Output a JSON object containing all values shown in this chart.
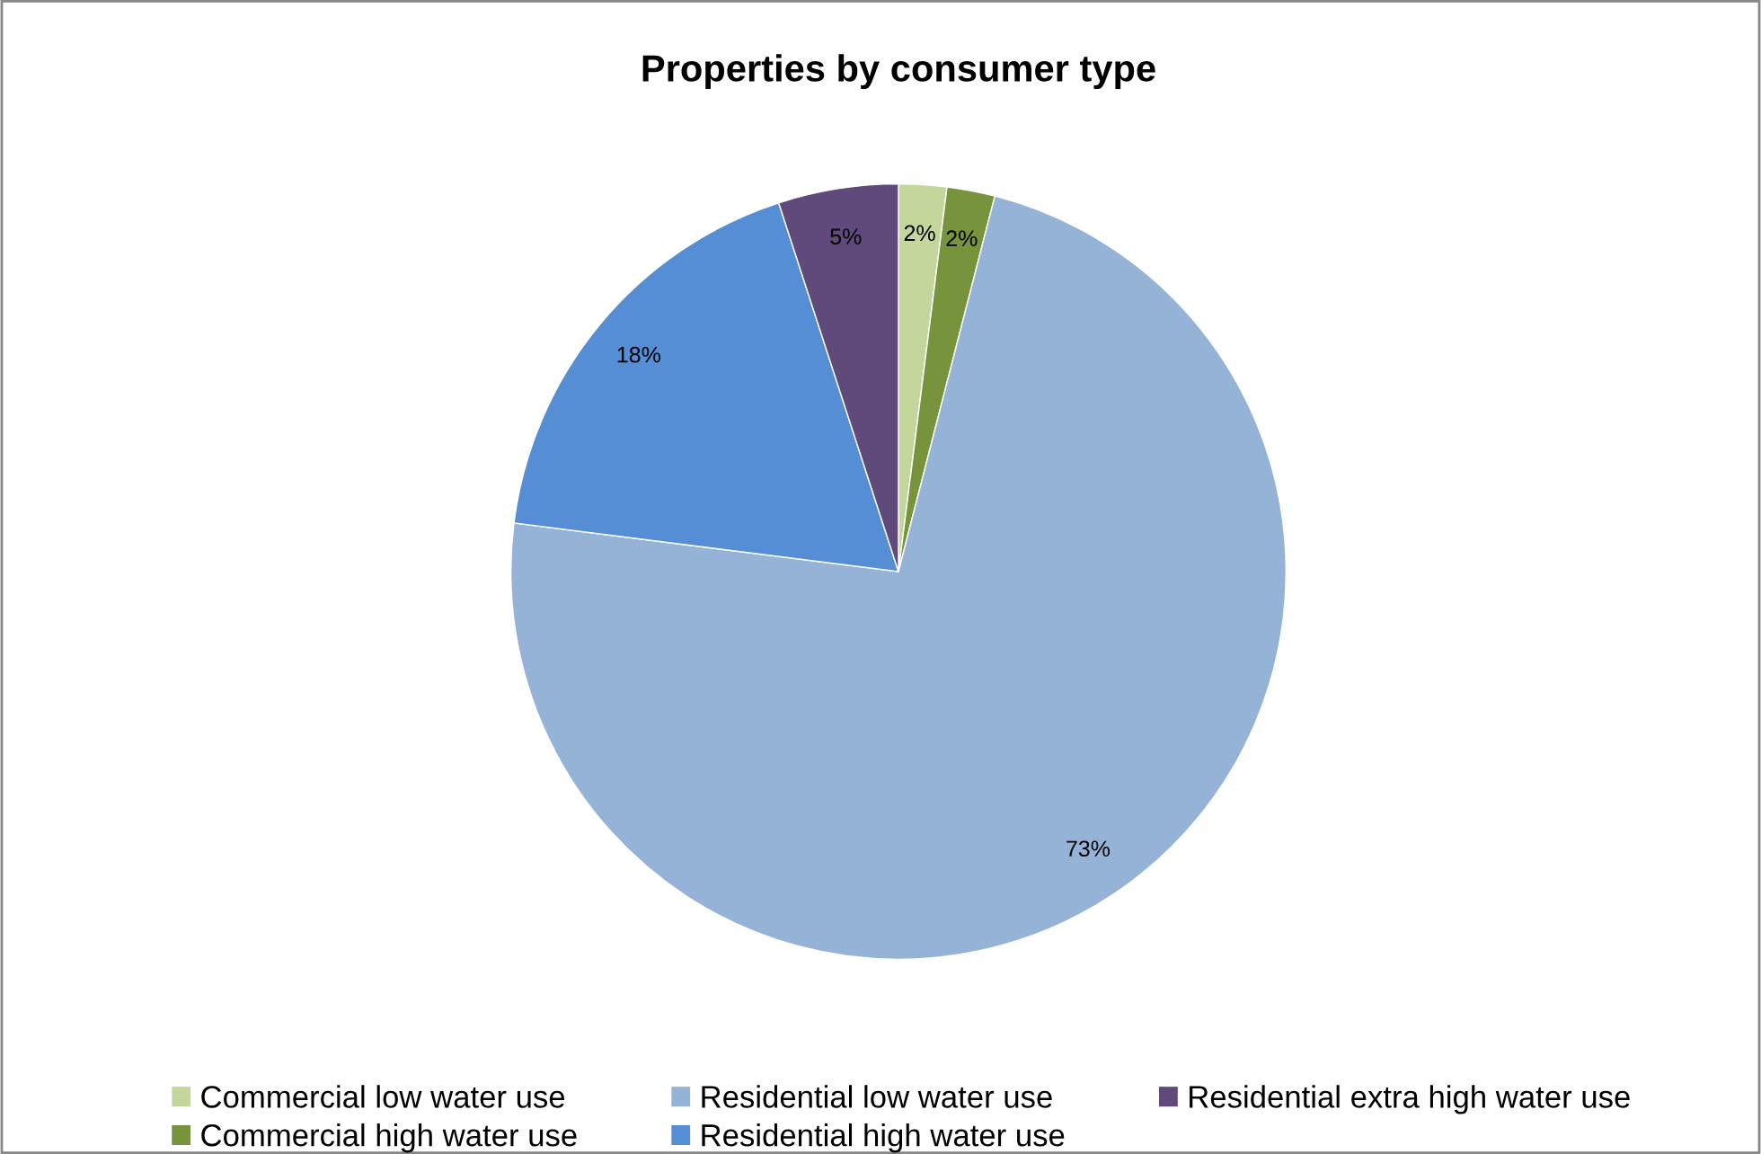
{
  "chart_data": {
    "type": "pie",
    "title": "Properties by consumer type",
    "categories": [
      "Commercial low water use",
      "Commercial high water use",
      "Residential low water use",
      "Residential high water use",
      "Residential extra high water use"
    ],
    "values": [
      2,
      2,
      73,
      18,
      5
    ],
    "colors": [
      "#c3d69b",
      "#77933c",
      "#95b3d7",
      "#558ed5",
      "#604a7b"
    ],
    "value_labels": [
      "2%",
      "2%",
      "73%",
      "18%",
      "5%"
    ],
    "legend": "bottom"
  }
}
